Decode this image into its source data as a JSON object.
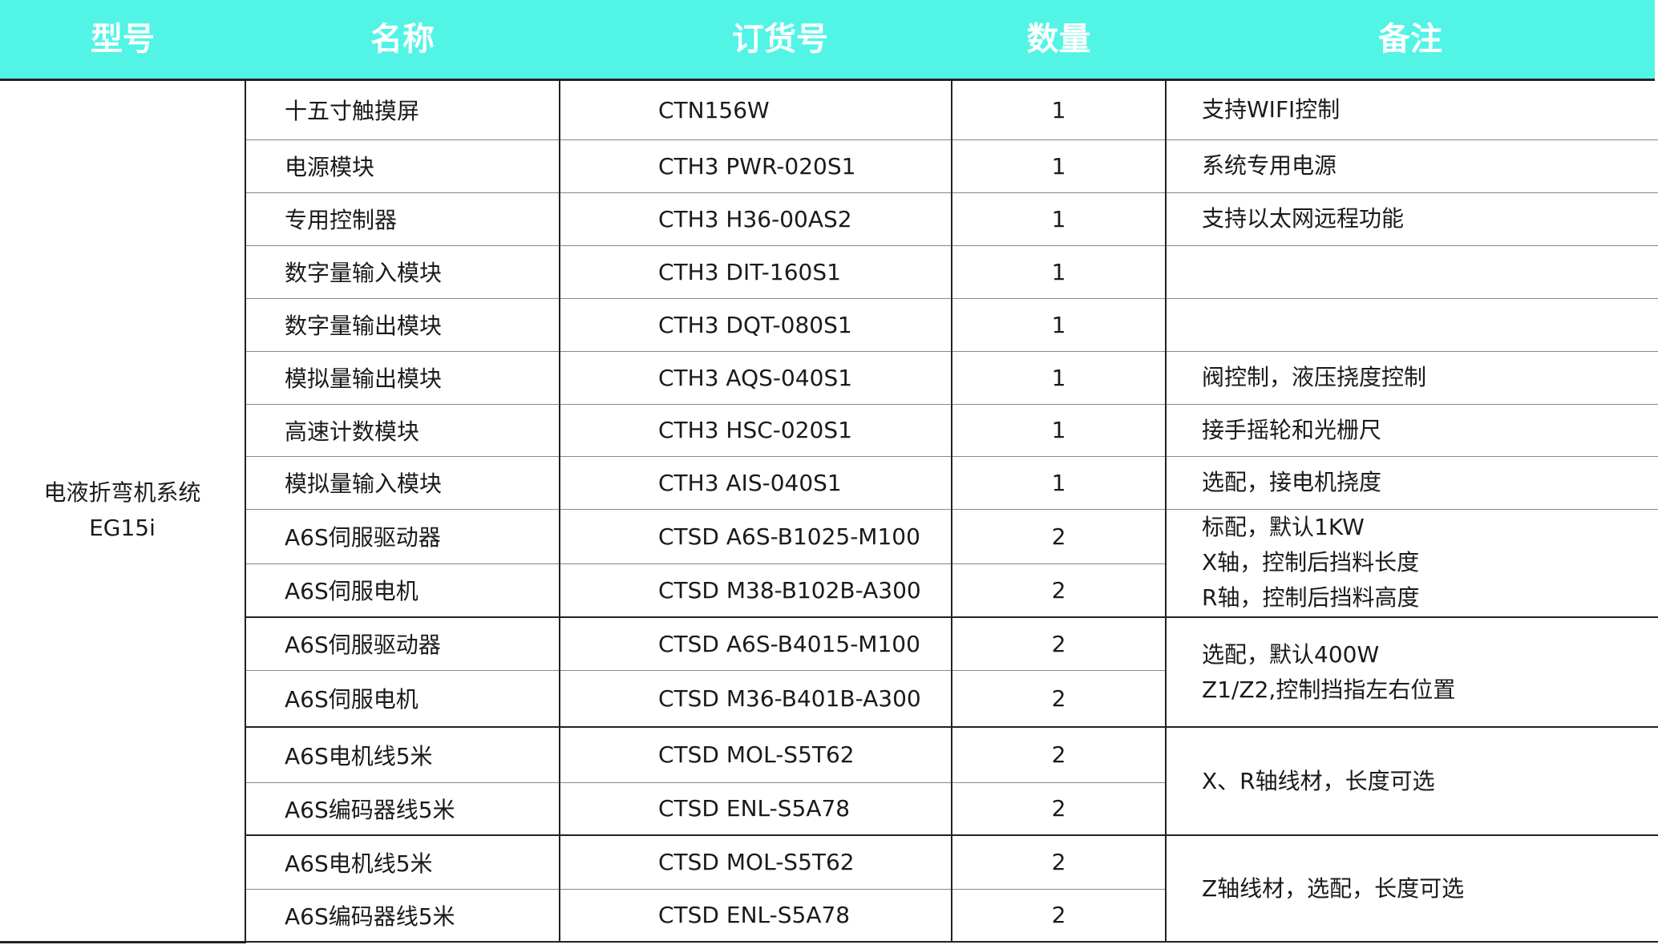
{
  "header": [
    "型号",
    "名称",
    "订货号",
    "数量",
    "备注"
  ],
  "header_color": "#52f4e6",
  "model": {
    "line1": "电液折弯机系统",
    "line2": "EG15i"
  },
  "rows": [
    {
      "name": "十五寸触摸屏",
      "order": "CTN156W",
      "qty": "1"
    },
    {
      "name": "电源模块",
      "order": "CTH3 PWR-020S1",
      "qty": "1"
    },
    {
      "name": "专用控制器",
      "order": "CTH3 H36-00AS2",
      "qty": "1"
    },
    {
      "name": "数字量输入模块",
      "order": "CTH3 DIT-160S1",
      "qty": "1"
    },
    {
      "name": "数字量输出模块",
      "order": "CTH3 DQT-080S1",
      "qty": "1"
    },
    {
      "name": "模拟量输出模块",
      "order": "CTH3 AQS-040S1",
      "qty": "1"
    },
    {
      "name": "高速计数模块",
      "order": "CTH3 HSC-020S1",
      "qty": "1"
    },
    {
      "name": "模拟量输入模块",
      "order": "CTH3 AIS-040S1",
      "qty": "1"
    },
    {
      "name": "A6S伺服驱动器",
      "order": "CTSD A6S-B1025-M100",
      "qty": "2"
    },
    {
      "name": "A6S伺服电机",
      "order": "CTSD M38-B102B-A300",
      "qty": "2"
    },
    {
      "name": "A6S伺服驱动器",
      "order": "CTSD A6S-B4015-M100",
      "qty": "2"
    },
    {
      "name": "A6S伺服电机",
      "order": "CTSD M36-B401B-A300",
      "qty": "2"
    },
    {
      "name": "A6S电机线5米",
      "order": "CTSD MOL-S5T62",
      "qty": "2"
    },
    {
      "name": "A6S编码器线5米",
      "order": "CTSD ENL-S5A78",
      "qty": "2"
    },
    {
      "name": "A6S电机线5米",
      "order": "CTSD MOL-S5T62",
      "qty": "2"
    },
    {
      "name": "A6S编码器线5米",
      "order": "CTSD ENL-S5A78",
      "qty": "2"
    }
  ],
  "remarks": [
    {
      "rowspan": 1,
      "lines": [
        "支持WIFI控制"
      ]
    },
    {
      "rowspan": 1,
      "lines": [
        "系统专用电源"
      ]
    },
    {
      "rowspan": 1,
      "lines": [
        "支持以太网远程功能"
      ]
    },
    {
      "rowspan": 1,
      "lines": [
        ""
      ]
    },
    {
      "rowspan": 1,
      "lines": [
        ""
      ]
    },
    {
      "rowspan": 1,
      "lines": [
        "阀控制，液压挠度控制"
      ]
    },
    {
      "rowspan": 1,
      "lines": [
        "接手摇轮和光栅尺"
      ]
    },
    {
      "rowspan": 1,
      "lines": [
        "选配，接电机挠度"
      ]
    },
    {
      "rowspan": 2,
      "lines": [
        "标配，默认1KW",
        "X轴，控制后挡料长度",
        "R轴，控制后挡料高度"
      ]
    },
    {
      "rowspan": 2,
      "lines": [
        "选配，默认400W",
        "Z1/Z2,控制挡指左右位置"
      ]
    },
    {
      "rowspan": 2,
      "lines": [
        "X、R轴线材，长度可选"
      ]
    },
    {
      "rowspan": 2,
      "lines": [
        "Z轴线材，选配，长度可选"
      ]
    }
  ]
}
